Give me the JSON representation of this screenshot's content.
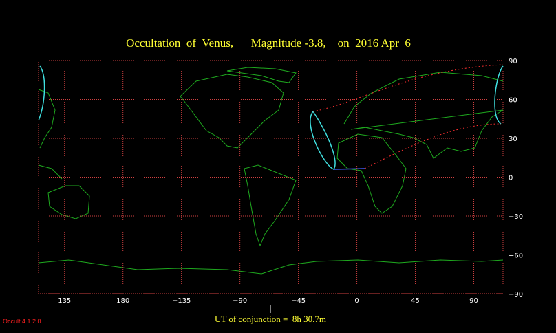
{
  "chart_data": {
    "type": "map",
    "title": "Occultation  of  Venus,      Magnitude -3.8,    on  2016 Apr  6",
    "xlim": [
      115,
      112.5
    ],
    "ylim": [
      -90,
      90
    ],
    "xticks": [
      135,
      180,
      {
        "value": -135,
        "label": "−135"
      },
      {
        "value": -90,
        "label": "−90"
      },
      {
        "value": -45,
        "label": "−45"
      },
      0,
      45,
      90
    ],
    "yticks": [
      90,
      60,
      30,
      0,
      {
        "value": -30,
        "label": "−30"
      },
      {
        "value": -60,
        "label": "−60"
      },
      {
        "value": -90,
        "label": "−90"
      }
    ],
    "grid": true,
    "note": "UT of conjunction =  8h 30.7m",
    "program": "Occult 4.1.2.0"
  }
}
